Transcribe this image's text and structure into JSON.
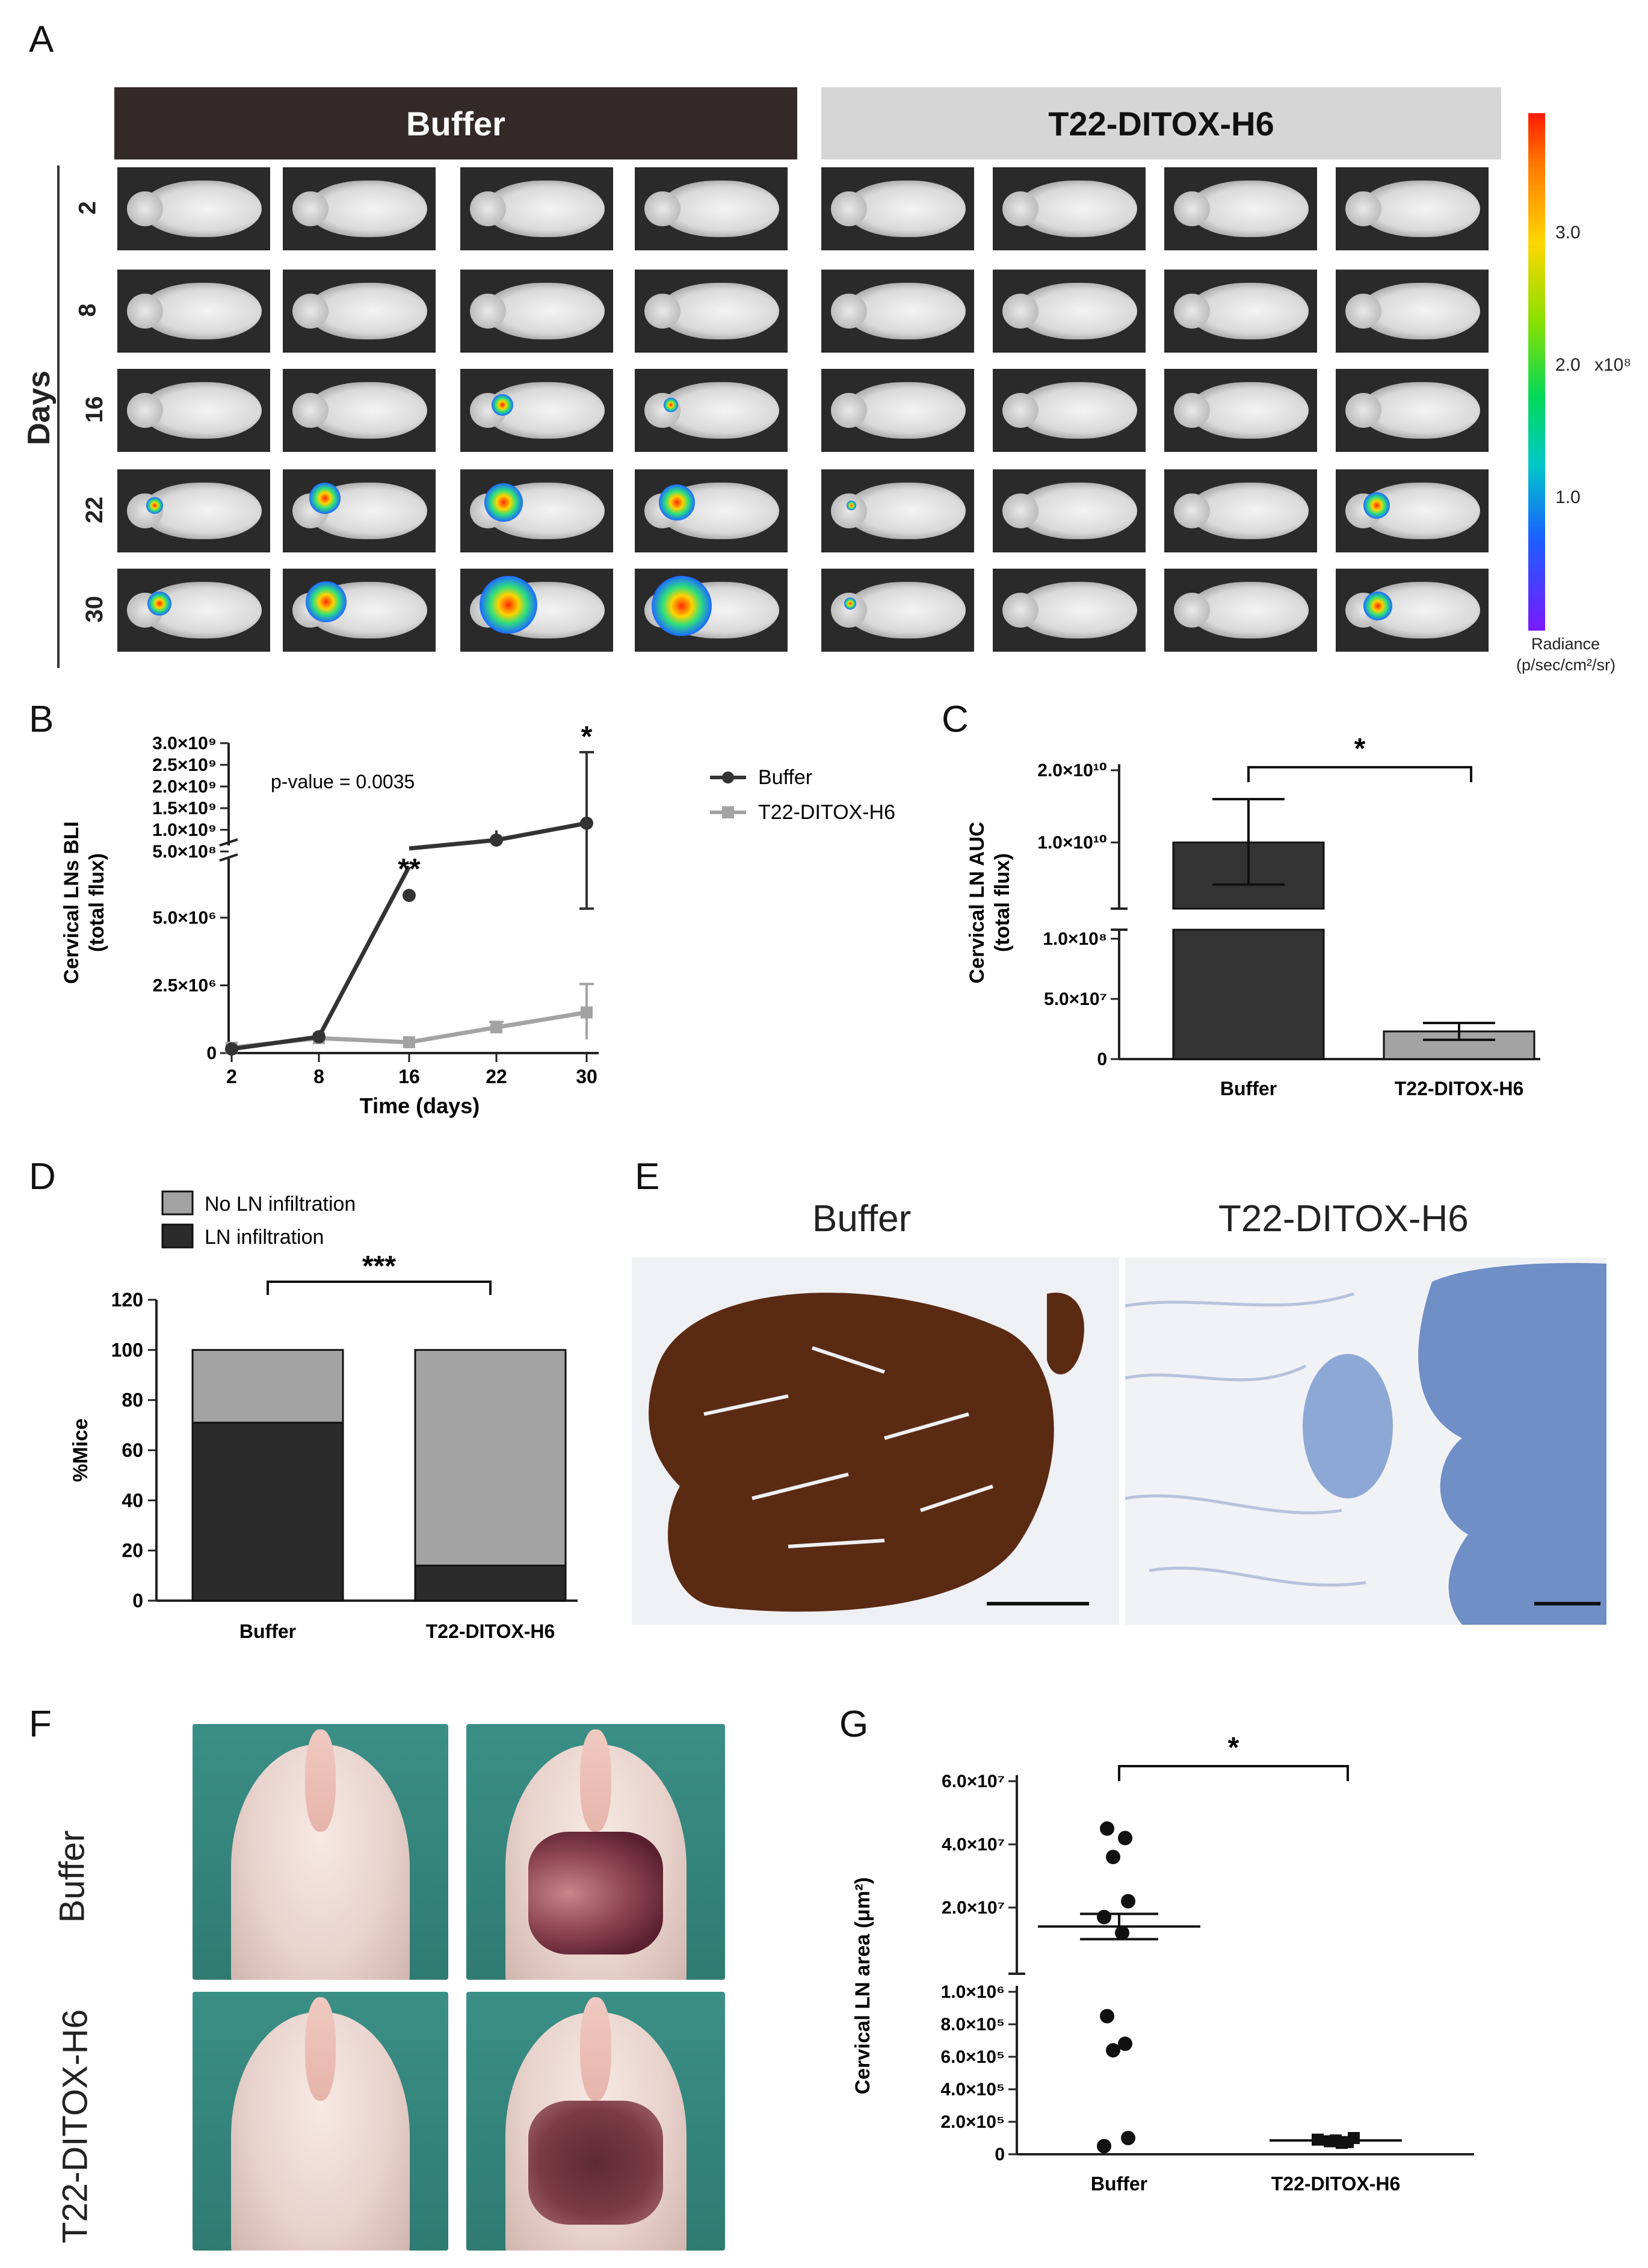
{
  "panel_labels": {
    "A": "A",
    "B": "B",
    "C": "C",
    "D": "D",
    "E": "E",
    "F": "F",
    "G": "G"
  },
  "panelA": {
    "group_buffer": "Buffer",
    "group_t22": "T22-DITOX-H6",
    "days_axis_label": "Days",
    "days": [
      "2",
      "8",
      "16",
      "22",
      "30"
    ],
    "colorbar_ticks": [
      "3.0",
      "2.0",
      "1.0"
    ],
    "colorbar_multiplier": "x10⁸",
    "colorbar_title_line1": "Radiance",
    "colorbar_title_line2": "(p/sec/cm²/sr)"
  },
  "panelE": {
    "title_buffer": "Buffer",
    "title_t22": "T22-DITOX-H6"
  },
  "panelF": {
    "row_buffer": "Buffer",
    "row_t22": "T22-DITOX-H6"
  },
  "chart_data": [
    {
      "panel": "B",
      "type": "line",
      "x": [
        2,
        8,
        16,
        22,
        30
      ],
      "xlabel": "Time (days)",
      "ylabel_line1": "Cervical LNs BLI",
      "ylabel_line2": "(total flux)",
      "annotation": "p-value = 0.0035",
      "significance": [
        {
          "x": 16,
          "label": "**"
        },
        {
          "x": 30,
          "label": "*"
        }
      ],
      "y_ticks_lower": [
        "0",
        "2.5×10⁶",
        "5.0×10⁶"
      ],
      "y_ticks_upper": [
        "5.0×10⁸",
        "1.0×10⁹",
        "1.5×10⁹",
        "2.0×10⁹",
        "2.5×10⁹",
        "3.0×10⁹"
      ],
      "ylim_lower": [
        0,
        5000000
      ],
      "ylim_upper": [
        0,
        3000000000
      ],
      "series": [
        {
          "name": "Buffer",
          "color": "#333333",
          "values": [
            150000,
            600000,
            5000000,
            4000000,
            1500000000
          ],
          "segment": [
            "lower",
            "lower",
            "break",
            "upper_low",
            "upper"
          ],
          "upper_y": [
            null,
            null,
            0,
            400000000,
            1500000000
          ],
          "err_upper": [
            null,
            null,
            null,
            600000000,
            2600000000
          ],
          "err_lower": [
            null,
            null,
            null,
            300000000,
            350000000
          ]
        },
        {
          "name": "T22-DITOX-H6",
          "color": "#a3a3a3",
          "values": [
            200000,
            550000,
            400000,
            950000,
            1500000
          ],
          "err_upper": [
            null,
            null,
            null,
            1150000,
            2550000
          ],
          "err_lower": [
            null,
            null,
            null,
            800000,
            500000
          ]
        }
      ]
    },
    {
      "panel": "C",
      "type": "bar",
      "categories": [
        "Buffer",
        "T22-DITOX-H6"
      ],
      "values": [
        10000000000,
        23000000
      ],
      "errors": [
        [
          3000000000,
          16000000000
        ],
        [
          16000000,
          30000000
        ]
      ],
      "ylabel_line1": "Cervical LN AUC",
      "ylabel_line2": "(total flux)",
      "y_ticks_lower": [
        "0",
        "5.0×10⁷",
        "1.0×10⁸"
      ],
      "y_ticks_upper": [
        "1.0×10¹⁰",
        "2.0×10¹⁰"
      ],
      "significance": "*",
      "colors": [
        "#333333",
        "#a3a3a3"
      ]
    },
    {
      "panel": "D",
      "type": "bar",
      "stacked": true,
      "categories": [
        "Buffer",
        "T22-DITOX-H6"
      ],
      "series": [
        {
          "name": "LN infiltration",
          "color": "#2b2b2b",
          "values": [
            71,
            14
          ]
        },
        {
          "name": "No LN infiltration",
          "color": "#a3a3a3",
          "values": [
            29,
            86
          ]
        }
      ],
      "ylabel": "%Mice",
      "ylim": [
        0,
        120
      ],
      "y_ticks": [
        "0",
        "20",
        "40",
        "60",
        "80",
        "100",
        "120"
      ],
      "significance": "***"
    },
    {
      "panel": "G",
      "type": "scatter",
      "categories": [
        "Buffer",
        "T22-DITOX-H6"
      ],
      "ylabel": "Cervical LN area (μm²)",
      "significance": "*",
      "y_ticks_lower": [
        "0",
        "2.0×10⁵",
        "4.0×10⁵",
        "6.0×10⁵",
        "8.0×10⁵",
        "1.0×10⁶"
      ],
      "y_ticks_upper": [
        "2.0×10⁷",
        "4.0×10⁷",
        "6.0×10⁷"
      ],
      "buffer_points_upper": [
        45000000,
        42000000,
        36000000,
        22000000,
        17000000,
        12000000
      ],
      "buffer_points_lower": [
        850000,
        680000,
        640000,
        100000,
        50000
      ],
      "buffer_mean": 14000000,
      "buffer_sem": [
        10000000,
        18000000
      ],
      "t22_points": [
        90000,
        80000,
        70000,
        100000,
        85000,
        75000
      ],
      "t22_mean": 85000
    }
  ]
}
